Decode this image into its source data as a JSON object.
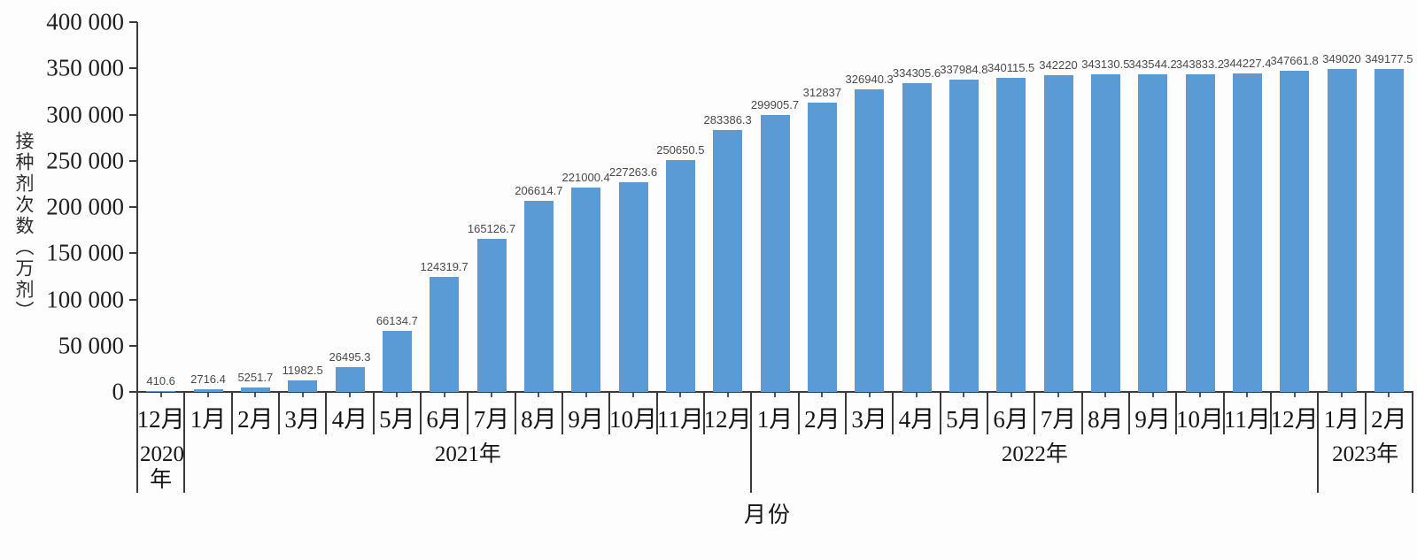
{
  "chart_data": {
    "type": "bar",
    "title": "",
    "ylabel": "接种剂次数（万剂）",
    "xlabel": "月份",
    "bar_color": "#5B9BD5",
    "axis_color": "#3b3b3b",
    "grid": false,
    "legend": false,
    "ylim": [
      0,
      400000
    ],
    "ytick_step": 50000,
    "ytick_labels": [
      "400 000",
      "350 000",
      "300 000",
      "250 000",
      "200 000",
      "150 000",
      "100 000",
      "50 000",
      "0"
    ],
    "categories": [
      "12月",
      "1月",
      "2月",
      "3月",
      "4月",
      "5月",
      "6月",
      "7月",
      "8月",
      "9月",
      "10月",
      "11月",
      "12月",
      "1月",
      "2月",
      "3月",
      "4月",
      "5月",
      "6月",
      "7月",
      "8月",
      "9月",
      "10月",
      "11月",
      "12月",
      "1月",
      "2月"
    ],
    "values": [
      410.6,
      2716.4,
      5251.7,
      11982.5,
      26495.3,
      66134.7,
      124319.7,
      165126.7,
      206614.7,
      221000.4,
      227263.6,
      250650.5,
      283386.3,
      299905.7,
      312837,
      326940.3,
      334305.6,
      337984.8,
      340115.5,
      342220,
      343130.5,
      343544.2,
      343833.2,
      344227.4,
      347661.8,
      349020,
      349177.5
    ],
    "value_labels": [
      "410.6",
      "2716.4",
      "5251.7",
      "11982.5",
      "26495.3",
      "66134.7",
      "124319.7",
      "165126.7",
      "206614.7",
      "221000.4",
      "227263.6",
      "250650.5",
      "283386.3",
      "299905.7",
      "312837",
      "326940.3",
      "334305.6",
      "337984.8",
      "340115.5",
      "342220",
      "343130.5",
      "343544.2",
      "343833.2",
      "344227.4",
      "347661.8",
      "349020",
      "349177.5"
    ],
    "year_groups": [
      {
        "label": "2020年",
        "span": 1,
        "wrap": true
      },
      {
        "label": "2021年",
        "span": 12,
        "wrap": false
      },
      {
        "label": "2022年",
        "span": 12,
        "wrap": false
      },
      {
        "label": "2023年",
        "span": 2,
        "wrap": false
      }
    ]
  }
}
